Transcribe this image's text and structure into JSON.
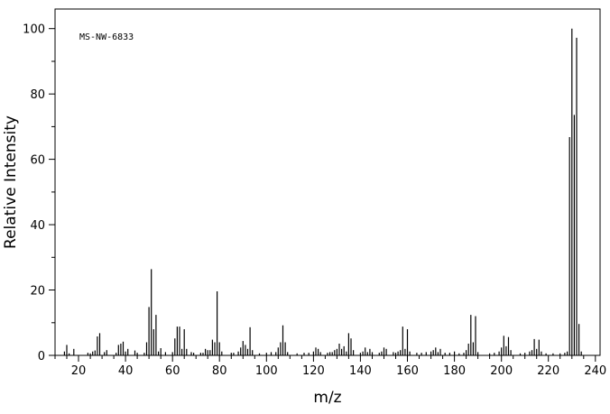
{
  "chart_data": {
    "type": "bar",
    "title": "",
    "annotation": "MS-NW-6833",
    "xlabel": "m/z",
    "ylabel": "Relative Intensity",
    "xlim": [
      10,
      242
    ],
    "ylim": [
      0,
      106
    ],
    "xticks_major": [
      20,
      40,
      60,
      80,
      100,
      120,
      140,
      160,
      180,
      200,
      220,
      240
    ],
    "xticks_minor_step": 5,
    "yticks_major": [
      0,
      20,
      40,
      60,
      80,
      100
    ],
    "yticks_minor_step": 10,
    "grid": false,
    "legend": "none",
    "bar_color": "#000000",
    "peaks": [
      [
        14,
        1.2
      ],
      [
        15,
        3.2
      ],
      [
        16,
        0.6
      ],
      [
        18,
        2.0
      ],
      [
        24,
        0.8
      ],
      [
        25,
        0.6
      ],
      [
        26,
        1.2
      ],
      [
        27,
        1.5
      ],
      [
        28,
        5.8
      ],
      [
        29,
        6.8
      ],
      [
        31,
        1.0
      ],
      [
        32,
        1.6
      ],
      [
        36,
        0.8
      ],
      [
        37,
        3.2
      ],
      [
        38,
        3.6
      ],
      [
        39,
        4.2
      ],
      [
        40,
        1.2
      ],
      [
        41,
        2.0
      ],
      [
        44,
        1.5
      ],
      [
        45,
        0.8
      ],
      [
        48,
        0.8
      ],
      [
        49,
        4.0
      ],
      [
        50,
        14.8
      ],
      [
        51,
        26.4
      ],
      [
        52,
        8.0
      ],
      [
        53,
        12.4
      ],
      [
        54,
        1.2
      ],
      [
        55,
        2.2
      ],
      [
        57,
        1.0
      ],
      [
        60,
        1.0
      ],
      [
        61,
        5.2
      ],
      [
        62,
        8.8
      ],
      [
        63,
        8.8
      ],
      [
        64,
        2.0
      ],
      [
        65,
        8.0
      ],
      [
        66,
        2.0
      ],
      [
        68,
        1.0
      ],
      [
        69,
        0.8
      ],
      [
        72,
        0.8
      ],
      [
        73,
        0.8
      ],
      [
        74,
        2.0
      ],
      [
        75,
        1.6
      ],
      [
        76,
        1.6
      ],
      [
        77,
        4.8
      ],
      [
        78,
        4.0
      ],
      [
        79,
        19.6
      ],
      [
        80,
        4.0
      ],
      [
        81,
        1.2
      ],
      [
        85,
        0.8
      ],
      [
        86,
        0.8
      ],
      [
        88,
        1.2
      ],
      [
        89,
        2.4
      ],
      [
        90,
        4.4
      ],
      [
        91,
        3.2
      ],
      [
        92,
        2.0
      ],
      [
        93,
        8.6
      ],
      [
        94,
        1.6
      ],
      [
        97,
        0.6
      ],
      [
        100,
        0.8
      ],
      [
        102,
        1.0
      ],
      [
        104,
        1.0
      ],
      [
        105,
        2.4
      ],
      [
        106,
        4.0
      ],
      [
        107,
        9.2
      ],
      [
        108,
        4.0
      ],
      [
        109,
        1.0
      ],
      [
        113,
        0.6
      ],
      [
        116,
        0.8
      ],
      [
        118,
        0.8
      ],
      [
        120,
        1.2
      ],
      [
        121,
        2.4
      ],
      [
        122,
        2.0
      ],
      [
        123,
        1.0
      ],
      [
        126,
        0.8
      ],
      [
        127,
        1.0
      ],
      [
        128,
        1.0
      ],
      [
        129,
        1.6
      ],
      [
        130,
        2.0
      ],
      [
        131,
        3.6
      ],
      [
        132,
        2.0
      ],
      [
        133,
        2.8
      ],
      [
        134,
        1.2
      ],
      [
        135,
        6.8
      ],
      [
        136,
        5.2
      ],
      [
        137,
        1.6
      ],
      [
        140,
        0.8
      ],
      [
        141,
        1.2
      ],
      [
        142,
        2.4
      ],
      [
        143,
        1.0
      ],
      [
        144,
        2.0
      ],
      [
        145,
        1.0
      ],
      [
        148,
        0.8
      ],
      [
        149,
        1.2
      ],
      [
        150,
        2.4
      ],
      [
        151,
        2.0
      ],
      [
        154,
        1.0
      ],
      [
        155,
        0.8
      ],
      [
        156,
        1.2
      ],
      [
        157,
        1.6
      ],
      [
        158,
        8.8
      ],
      [
        159,
        2.0
      ],
      [
        160,
        8.0
      ],
      [
        161,
        1.2
      ],
      [
        164,
        0.8
      ],
      [
        166,
        0.8
      ],
      [
        168,
        1.0
      ],
      [
        170,
        1.2
      ],
      [
        171,
        1.6
      ],
      [
        172,
        2.4
      ],
      [
        173,
        1.0
      ],
      [
        174,
        2.0
      ],
      [
        176,
        0.8
      ],
      [
        178,
        0.8
      ],
      [
        180,
        1.2
      ],
      [
        182,
        0.6
      ],
      [
        184,
        0.8
      ],
      [
        185,
        1.6
      ],
      [
        186,
        3.6
      ],
      [
        187,
        12.4
      ],
      [
        188,
        4.0
      ],
      [
        189,
        12.0
      ],
      [
        190,
        1.0
      ],
      [
        195,
        0.6
      ],
      [
        197,
        0.8
      ],
      [
        199,
        1.2
      ],
      [
        200,
        2.4
      ],
      [
        201,
        6.0
      ],
      [
        202,
        2.8
      ],
      [
        203,
        5.6
      ],
      [
        204,
        1.6
      ],
      [
        208,
        0.6
      ],
      [
        210,
        0.8
      ],
      [
        212,
        1.2
      ],
      [
        213,
        1.6
      ],
      [
        214,
        5.0
      ],
      [
        215,
        2.0
      ],
      [
        216,
        4.8
      ],
      [
        217,
        1.2
      ],
      [
        219,
        0.6
      ],
      [
        222,
        0.6
      ],
      [
        225,
        0.6
      ],
      [
        227,
        0.8
      ],
      [
        228,
        1.2
      ],
      [
        229,
        66.8
      ],
      [
        230,
        100.0
      ],
      [
        231,
        73.6
      ],
      [
        232,
        97.2
      ],
      [
        233,
        9.6
      ],
      [
        234,
        1.2
      ]
    ]
  }
}
